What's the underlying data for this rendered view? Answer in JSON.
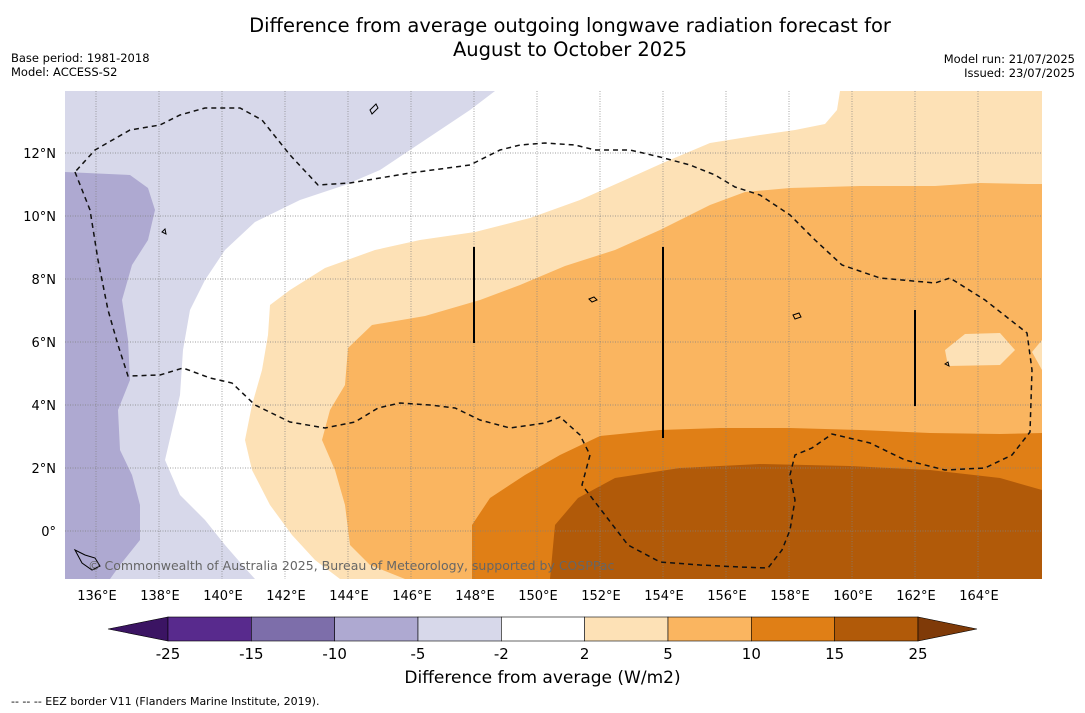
{
  "title_line1": "Difference from average outgoing longwave radiation forecast for",
  "title_line2": "August to October 2025",
  "meta_left": {
    "base_period": "Base period: 1981-2018",
    "model": "Model: ACCESS-S2"
  },
  "meta_right": {
    "model_run": "Model run: 21/07/2025",
    "issued": "Issued: 23/07/2025"
  },
  "map": {
    "lon_labels": [
      "136°E",
      "138°E",
      "140°E",
      "142°E",
      "144°E",
      "146°E",
      "148°E",
      "150°E",
      "152°E",
      "154°E",
      "156°E",
      "158°E",
      "160°E",
      "162°E",
      "164°E"
    ],
    "lat_labels": [
      "12°N",
      "10°N",
      "8°N",
      "6°N",
      "4°N",
      "2°N",
      "0°"
    ],
    "copyright": "© Commonwealth of Australia 2025, Bureau of Meteorology, supported by COSPPac"
  },
  "colorbar": {
    "ticks": [
      "-25",
      "-15",
      "-10",
      "-5",
      "-2",
      "2",
      "5",
      "10",
      "15",
      "25"
    ],
    "colors": [
      "#3b1463",
      "#582a8d",
      "#7d6eaa",
      "#aea9d1",
      "#d7d8ea",
      "#ffffff",
      "#fde1b6",
      "#fab560",
      "#e07f16",
      "#b15a09",
      "#7f3a08"
    ],
    "title": "Difference from average (W/m2)"
  },
  "footnote": "--  --  -- EEZ border V11 (Flanders Marine Institute, 2019)."
}
